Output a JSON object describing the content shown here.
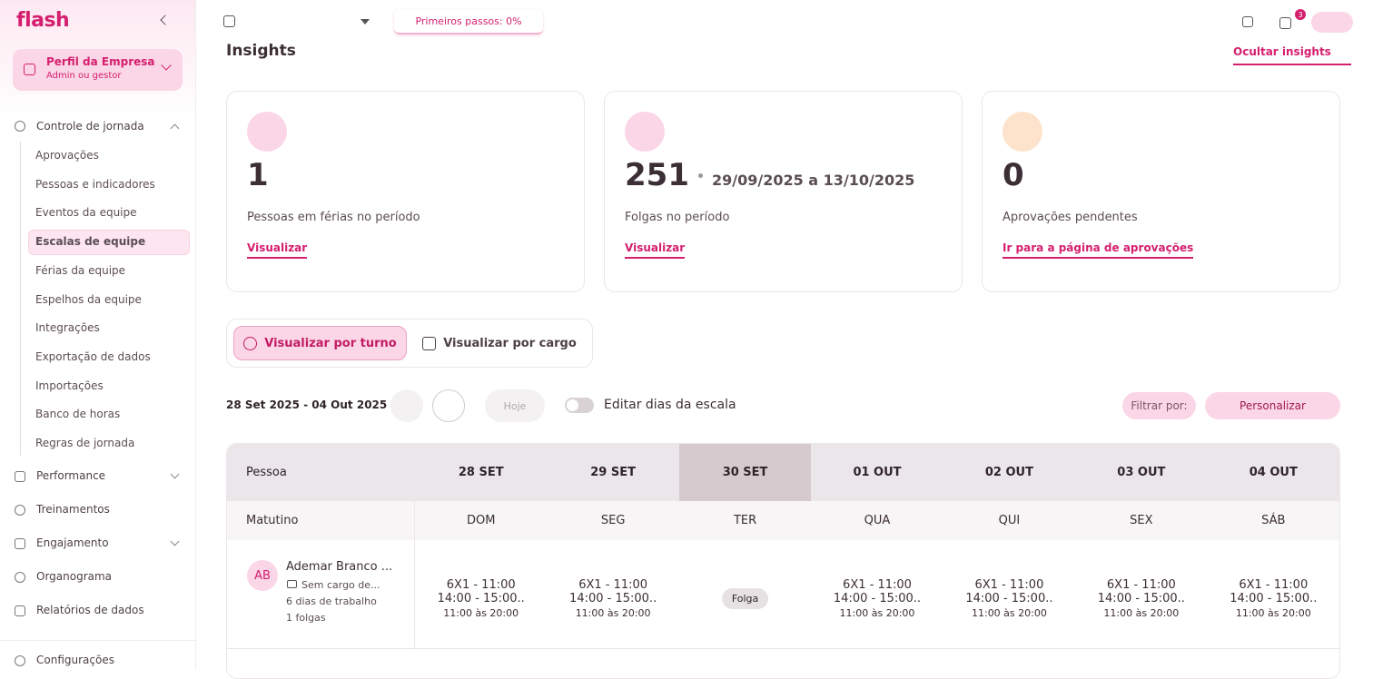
{
  "sidebar": {
    "logo": "flash",
    "profile": {
      "title": "Perfil da Empresa",
      "subtitle": "Admin ou gestor"
    },
    "group": {
      "label": "Controle de jornada",
      "items": [
        "Aprovações",
        "Pessoas e indicadores",
        "Eventos da equipe",
        "Escalas de equipe",
        "Férias da equipe",
        "Espelhos da equipe",
        "Integrações",
        "Exportação de dados",
        "Importações",
        "Banco de horas",
        "Regras de jornada"
      ],
      "active": 3
    },
    "sections": [
      "Performance",
      "Treinamentos",
      "Engajamento",
      "Organograma",
      "Relatórios de dados"
    ],
    "footer": "Configurações"
  },
  "topbar": {
    "first_steps": "Primeiros passos: 0%",
    "notification_count": 3
  },
  "insights": {
    "title": "Insights",
    "hide": "Ocultar insights",
    "cards": [
      {
        "value": 1,
        "label": "Pessoas em férias no período",
        "link": "Visualizar"
      },
      {
        "value": 251,
        "period": "29/09/2025 a 13/10/2025",
        "label": "Folgas no período",
        "link": "Visualizar"
      },
      {
        "value": 0,
        "label": "Aprovações pendentes",
        "link": "Ir para a página de aprovações"
      }
    ]
  },
  "views": [
    "Visualizar por turno",
    "Visualizar por cargo"
  ],
  "toolbar": {
    "range": "28 Set 2025 - 04 Out 2025",
    "today": "Hoje",
    "edit": "Editar dias da escala",
    "filter": "Filtrar por:",
    "customize": "Personalizar"
  },
  "table": {
    "header": [
      "Pessoa",
      "28 SET",
      "29 SET",
      "30 SET",
      "01 OUT",
      "02 OUT",
      "03 OUT",
      "04 OUT"
    ],
    "subheader": [
      "Matutino",
      "DOM",
      "SEG",
      "TER",
      "QUA",
      "QUI",
      "SEX",
      "SÁB"
    ],
    "rows": [
      {
        "initials": "AB",
        "name": "Ademar Branco ...",
        "role": "Sem cargo de...",
        "work_days": "6 dias de trabalho",
        "days_off": "1 folgas",
        "cells": [
          {
            "schedule": "6X1 - 11:00",
            "break": "14:00 - 15:00..",
            "hours": "11:00 às 20:00"
          },
          {
            "schedule": "6X1 - 11:00",
            "break": "14:00 - 15:00..",
            "hours": "11:00 às 20:00"
          },
          {
            "tag": "Folga"
          },
          {
            "schedule": "6X1 - 11:00",
            "break": "14:00 - 15:00..",
            "hours": "11:00 às 20:00"
          },
          {
            "schedule": "6X1 - 11:00",
            "break": "14:00 - 15:00..",
            "hours": "11:00 às 20:00"
          },
          {
            "schedule": "6X1 - 11:00",
            "break": "14:00 - 15:00..",
            "hours": "11:00 às 20:00"
          },
          {
            "schedule": "6X1 - 11:00",
            "break": "14:00 - 15:00..",
            "hours": "11:00 às 20:00"
          }
        ]
      }
    ]
  }
}
